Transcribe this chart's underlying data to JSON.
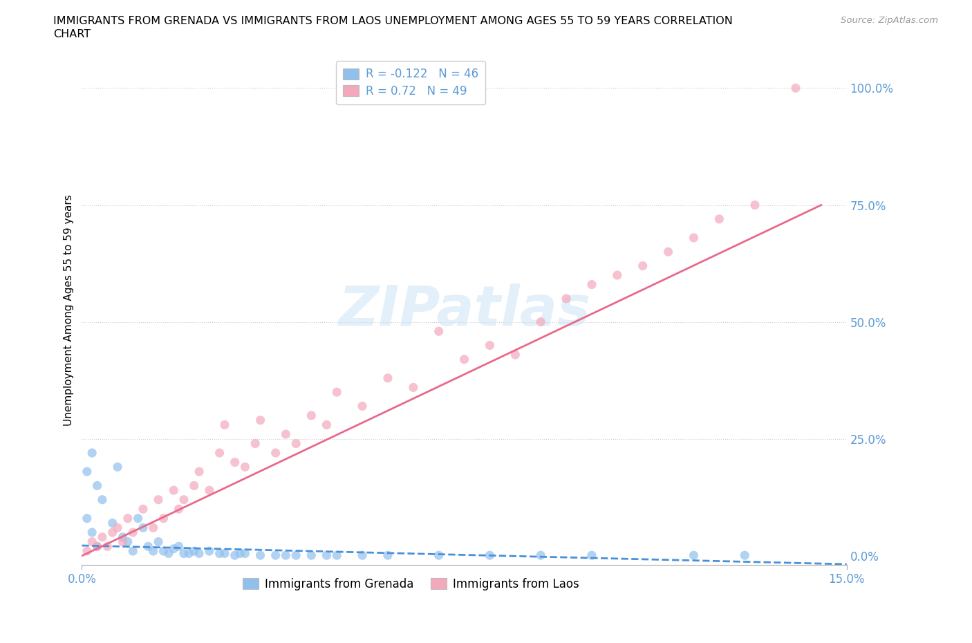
{
  "title_line1": "IMMIGRANTS FROM GRENADA VS IMMIGRANTS FROM LAOS UNEMPLOYMENT AMONG AGES 55 TO 59 YEARS CORRELATION",
  "title_line2": "CHART",
  "source": "Source: ZipAtlas.com",
  "ylabel": "Unemployment Among Ages 55 to 59 years",
  "xlim": [
    0.0,
    0.15
  ],
  "ylim": [
    0.0,
    1.05
  ],
  "xticks": [
    0.0,
    0.15
  ],
  "xticklabels": [
    "0.0%",
    "15.0%"
  ],
  "yticks": [
    0.0,
    0.25,
    0.5,
    0.75,
    1.0
  ],
  "yticklabels": [
    "0.0%",
    "25.0%",
    "50.0%",
    "75.0%",
    "100.0%"
  ],
  "grenada_color": "#91c0ed",
  "laos_color": "#f4a8bb",
  "grenada_line_color": "#4a90d9",
  "laos_line_color": "#e8698a",
  "tick_color": "#5b9bd5",
  "grenada_R": -0.122,
  "grenada_N": 46,
  "laos_R": 0.72,
  "laos_N": 49,
  "watermark": "ZIPatlas",
  "grenada_x": [
    0.001,
    0.002,
    0.003,
    0.001,
    0.002,
    0.004,
    0.003,
    0.006,
    0.008,
    0.007,
    0.009,
    0.01,
    0.012,
    0.011,
    0.013,
    0.014,
    0.015,
    0.016,
    0.018,
    0.017,
    0.019,
    0.02,
    0.022,
    0.021,
    0.023,
    0.025,
    0.028,
    0.027,
    0.03,
    0.032,
    0.031,
    0.035,
    0.038,
    0.04,
    0.042,
    0.045,
    0.048,
    0.05,
    0.055,
    0.06,
    0.07,
    0.08,
    0.09,
    0.1,
    0.12,
    0.13
  ],
  "grenada_y": [
    0.18,
    0.22,
    0.15,
    0.08,
    0.05,
    0.12,
    0.02,
    0.07,
    0.04,
    0.19,
    0.03,
    0.01,
    0.06,
    0.08,
    0.02,
    0.01,
    0.03,
    0.01,
    0.015,
    0.005,
    0.02,
    0.005,
    0.01,
    0.005,
    0.005,
    0.01,
    0.005,
    0.005,
    0.001,
    0.005,
    0.005,
    0.001,
    0.001,
    0.001,
    0.001,
    0.001,
    0.001,
    0.001,
    0.001,
    0.001,
    0.001,
    0.001,
    0.001,
    0.001,
    0.001,
    0.001
  ],
  "laos_x": [
    0.001,
    0.002,
    0.003,
    0.004,
    0.005,
    0.006,
    0.007,
    0.008,
    0.009,
    0.01,
    0.012,
    0.014,
    0.015,
    0.016,
    0.018,
    0.019,
    0.02,
    0.022,
    0.023,
    0.025,
    0.027,
    0.028,
    0.03,
    0.032,
    0.034,
    0.035,
    0.038,
    0.04,
    0.042,
    0.045,
    0.048,
    0.05,
    0.055,
    0.06,
    0.065,
    0.07,
    0.075,
    0.08,
    0.085,
    0.09,
    0.095,
    0.1,
    0.105,
    0.11,
    0.115,
    0.12,
    0.125,
    0.132,
    0.14
  ],
  "laos_y": [
    0.01,
    0.03,
    0.02,
    0.04,
    0.02,
    0.05,
    0.06,
    0.03,
    0.08,
    0.05,
    0.1,
    0.06,
    0.12,
    0.08,
    0.14,
    0.1,
    0.12,
    0.15,
    0.18,
    0.14,
    0.22,
    0.28,
    0.2,
    0.19,
    0.24,
    0.29,
    0.22,
    0.26,
    0.24,
    0.3,
    0.28,
    0.35,
    0.32,
    0.38,
    0.36,
    0.48,
    0.42,
    0.45,
    0.43,
    0.5,
    0.55,
    0.58,
    0.6,
    0.62,
    0.65,
    0.68,
    0.72,
    0.75,
    1.0
  ],
  "grenada_line_x": [
    0.0,
    0.15
  ],
  "grenada_line_y": [
    0.022,
    -0.018
  ],
  "laos_line_x": [
    0.0,
    0.145
  ],
  "laos_line_y": [
    0.0,
    0.75
  ]
}
